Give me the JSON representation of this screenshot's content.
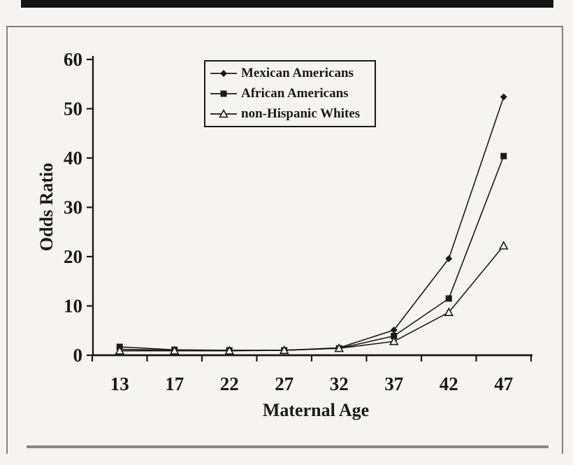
{
  "figure": {
    "background": "#f5f4f2",
    "top_rule_color": "#161616",
    "bottom_rule_color": "#868686",
    "border_color": "#818181",
    "ink_color": "#1a1a1a"
  },
  "chart_data": {
    "type": "line",
    "title": "",
    "xlabel": "Maternal Age",
    "ylabel": "Odds Ratio",
    "categories": [
      13,
      17,
      22,
      27,
      32,
      37,
      42,
      47
    ],
    "x_tick_labels": [
      "13",
      "17",
      "22",
      "27",
      "32",
      "37",
      "42",
      "47"
    ],
    "y_ticks": [
      0,
      10,
      20,
      30,
      40,
      50,
      60
    ],
    "y_tick_labels": [
      "0",
      "10",
      "20",
      "30",
      "40",
      "50",
      "60"
    ],
    "ylim": [
      0,
      60
    ],
    "grid": false,
    "legend_position": "top-center-inside",
    "line_color": "#1a1a1a",
    "series": [
      {
        "name": "Mexican Americans",
        "marker": "diamond",
        "marker_style": "filled",
        "values": [
          1.2,
          1.0,
          1.0,
          1.0,
          1.5,
          5.1,
          19.6,
          52.4
        ]
      },
      {
        "name": "African Americans",
        "marker": "square",
        "marker_style": "filled",
        "values": [
          1.7,
          1.1,
          1.0,
          1.0,
          1.4,
          3.9,
          11.5,
          40.4
        ]
      },
      {
        "name": "non-Hispanic Whites",
        "marker": "triangle",
        "marker_style": "open",
        "values": [
          0.9,
          0.9,
          0.9,
          1.0,
          1.4,
          2.8,
          8.7,
          22.2
        ]
      }
    ]
  }
}
